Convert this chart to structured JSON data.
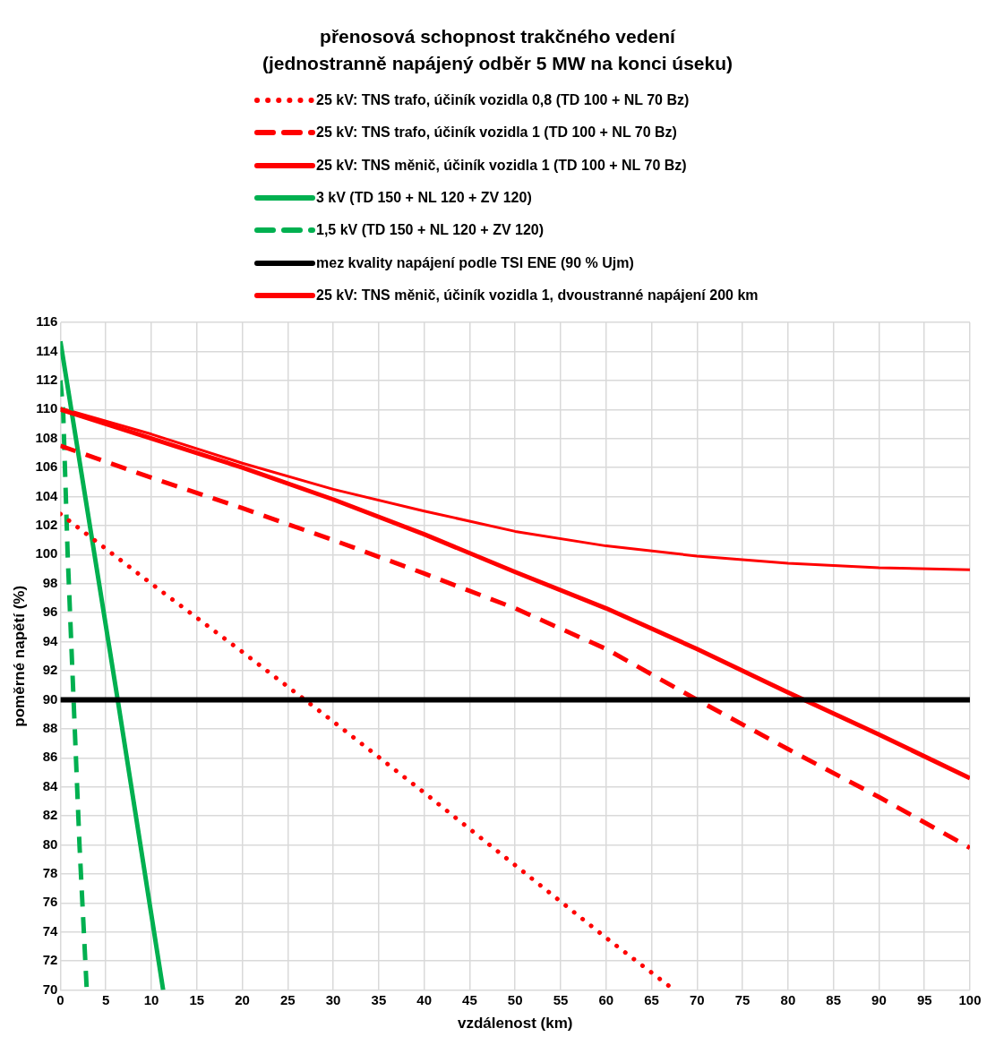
{
  "chart_data": {
    "type": "line",
    "title": "přenosová schopnost trakčného vedení\n(jednostranně napájený odběr 5 MW na konci úseku)",
    "xlabel": "vzdálenost (km)",
    "ylabel": "poměrné napětí (%)",
    "xlim": [
      0,
      100
    ],
    "ylim": [
      70,
      116
    ],
    "xticks": [
      0,
      5,
      10,
      15,
      20,
      25,
      30,
      35,
      40,
      45,
      50,
      55,
      60,
      65,
      70,
      75,
      80,
      85,
      90,
      95,
      100
    ],
    "yticks": [
      70,
      72,
      74,
      76,
      78,
      80,
      82,
      84,
      86,
      88,
      90,
      92,
      94,
      96,
      98,
      100,
      102,
      104,
      106,
      108,
      110,
      112,
      114,
      116
    ],
    "grid": true,
    "legend": "top",
    "marker": "none",
    "series": [
      {
        "name": "25 kV: TNS trafo, účiník vozidla 0,8 (TD 100 + NL 70 Bz)",
        "color": "#ff0000",
        "line_style": "dotted",
        "x": [
          0,
          10,
          20,
          30,
          40,
          50,
          60,
          67.5
        ],
        "values": [
          102.8,
          98,
          93.3,
          88.5,
          83.6,
          78.6,
          73.6,
          70
        ]
      },
      {
        "name": "25 kV: TNS trafo, účiník vozidla 1 (TD 100 + NL 70 Bz)",
        "color": "#ff0000",
        "line_style": "dashed",
        "x": [
          0,
          10,
          20,
          30,
          40,
          50,
          60,
          70,
          80,
          90,
          100
        ],
        "values": [
          107.5,
          105.3,
          103.2,
          101,
          98.7,
          96.3,
          93.5,
          90,
          86.6,
          83.3,
          79.8
        ]
      },
      {
        "name": "25 kV: TNS měnič, účiník vozidla 1 (TD 100 + NL 70 Bz)",
        "color": "#ff0000",
        "line_style": "solid",
        "x": [
          0,
          10,
          20,
          30,
          40,
          50,
          60,
          70,
          80,
          90,
          100
        ],
        "values": [
          110,
          108,
          106,
          103.8,
          101.4,
          98.8,
          96.3,
          93.5,
          90.5,
          87.6,
          84.6
        ]
      },
      {
        "name": "3 kV (TD 150 + NL 120 + ZV 120)",
        "color": "#00b050",
        "line_style": "solid",
        "x": [
          0,
          6.3,
          11.3
        ],
        "values": [
          114.7,
          90,
          70
        ]
      },
      {
        "name": "1,5 kV (TD 150 + NL 120 + ZV 120)",
        "color": "#00b050",
        "line_style": "dashed",
        "x": [
          0,
          0.3,
          0.8,
          1.45,
          2.1,
          2.9
        ],
        "values": [
          112,
          110,
          100,
          90,
          80,
          70
        ]
      },
      {
        "name": "25 kV: TNS měnič, účiník vozidla 1, dvoustranné napájení 200 km",
        "color": "#ff0000",
        "line_style": "solid",
        "x": [
          0,
          10,
          20,
          30,
          40,
          50,
          60,
          70,
          80,
          90,
          100
        ],
        "values": [
          110.1,
          108.3,
          106.3,
          104.5,
          103,
          101.6,
          100.6,
          99.9,
          99.4,
          99.1,
          98.95
        ]
      }
    ],
    "ref_lines": [
      {
        "axis": "y",
        "value": 90,
        "label": "mez kvality napájení podle TSI ENE (90 % Ujm)",
        "color": "#000000",
        "line_style": "solid"
      }
    ]
  }
}
